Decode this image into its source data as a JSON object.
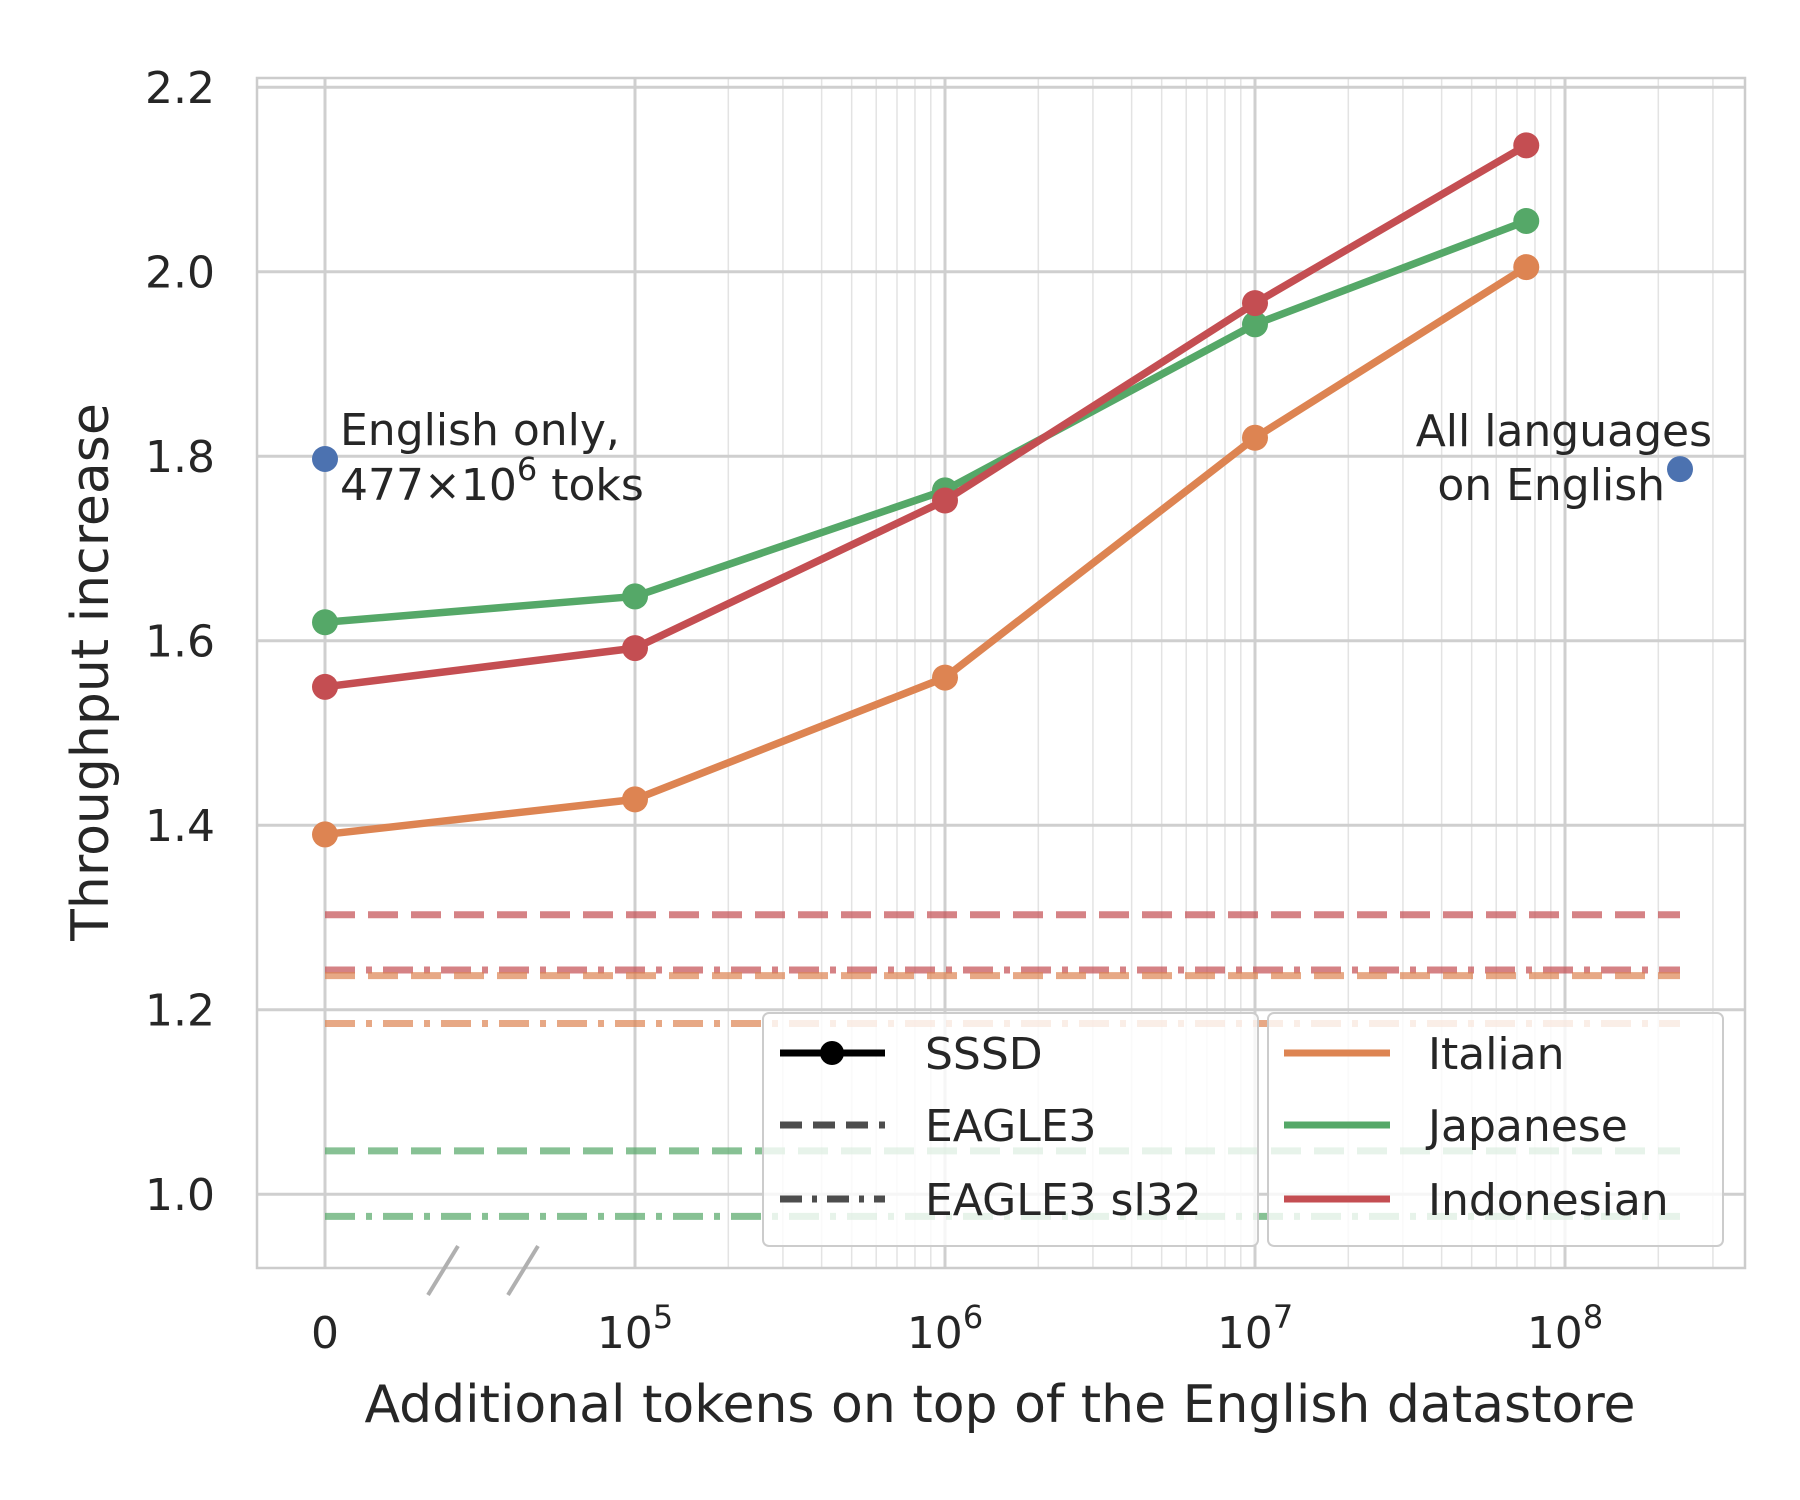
{
  "chart_data": {
    "type": "line",
    "xlabel": "Additional tokens on top of the English datastore",
    "ylabel": "Throughput increase",
    "x_scale": "log with broken-axis zero",
    "x_ticks": [
      {
        "base": "0",
        "exp": ""
      },
      {
        "base": "10",
        "exp": "5"
      },
      {
        "base": "10",
        "exp": "6"
      },
      {
        "base": "10",
        "exp": "7"
      },
      {
        "base": "10",
        "exp": "8"
      }
    ],
    "ylim": [
      0.92,
      2.21
    ],
    "y_ticks": [
      "1.0",
      "1.2",
      "1.4",
      "1.6",
      "1.8",
      "2.0",
      "2.2"
    ],
    "grid": true,
    "x": [
      0,
      100000,
      1000000,
      10000000,
      75000000
    ],
    "series": [
      {
        "name": "Italian",
        "color": "#dd8452",
        "values": [
          1.39,
          1.428,
          1.56,
          1.82,
          2.005
        ]
      },
      {
        "name": "Japanese",
        "color": "#55a868",
        "values": [
          1.62,
          1.648,
          1.763,
          1.943,
          2.055
        ]
      },
      {
        "name": "Indonesian",
        "color": "#c44e52",
        "values": [
          1.55,
          1.592,
          1.752,
          1.966,
          2.137
        ]
      }
    ],
    "baselines": [
      {
        "method": "EAGLE3",
        "language": "Indonesian",
        "color": "#c44e52",
        "value": 1.303
      },
      {
        "method": "EAGLE3 sl32",
        "language": "Indonesian",
        "color": "#c44e52",
        "value": 1.243
      },
      {
        "method": "EAGLE3",
        "language": "Italian",
        "color": "#dd8452",
        "value": 1.237
      },
      {
        "method": "EAGLE3 sl32",
        "language": "Italian",
        "color": "#dd8452",
        "value": 1.185
      },
      {
        "method": "EAGLE3",
        "language": "Japanese",
        "color": "#55a868",
        "value": 1.047
      },
      {
        "method": "EAGLE3 sl32",
        "language": "Japanese",
        "color": "#55a868",
        "value": 0.976
      }
    ],
    "reference_points": [
      {
        "x": 0,
        "value": 1.797,
        "color": "#4c72b0",
        "label_lines": [
          "English only,",
          "477×10",
          "6",
          " toks"
        ]
      },
      {
        "x": 240000000,
        "value": 1.786,
        "color": "#4c72b0",
        "label_lines": [
          "All languages",
          "on English"
        ]
      }
    ],
    "legend": {
      "placement": "lower-right",
      "methods": [
        "SSSD",
        "EAGLE3",
        "EAGLE3 sl32"
      ],
      "languages": [
        "Italian",
        "Japanese",
        "Indonesian"
      ]
    }
  }
}
